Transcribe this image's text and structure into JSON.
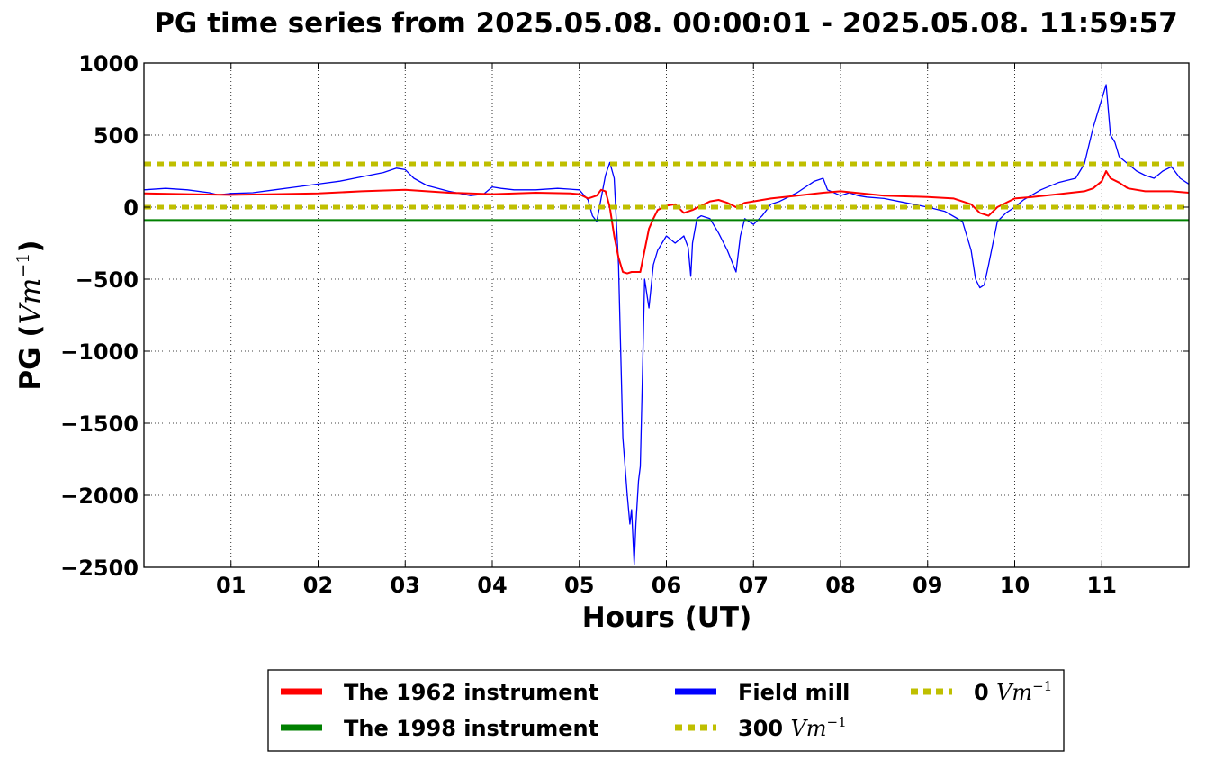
{
  "chart_data": {
    "type": "line",
    "title": "PG time series from 2025.05.08. 00:00:01 - 2025.05.08. 11:59:57",
    "xlabel": "Hours (UT)",
    "ylabel_prefix": "PG (",
    "ylabel_unit": "Vm",
    "ylabel_exp": "−1",
    "ylabel_suffix": ")",
    "xlim": [
      0,
      12
    ],
    "ylim": [
      -2500,
      1000
    ],
    "x_tick_values": [
      1,
      2,
      3,
      4,
      5,
      6,
      7,
      8,
      9,
      10,
      11
    ],
    "x_tick_labels": [
      "01",
      "02",
      "03",
      "04",
      "05",
      "06",
      "07",
      "08",
      "09",
      "10",
      "11"
    ],
    "y_tick_values": [
      1000,
      500,
      0,
      -500,
      -1000,
      -1500,
      -2000,
      -2500
    ],
    "y_tick_labels": [
      "1000",
      "500",
      "0",
      "−500",
      "−1000",
      "−1500",
      "−2000",
      "−2500"
    ],
    "grid": true,
    "legend_position": "below plot",
    "series": [
      {
        "name": "Field mill",
        "color": "#0000ff",
        "x": [
          0,
          0.25,
          0.5,
          0.75,
          0.85,
          1,
          1.25,
          1.5,
          1.75,
          2,
          2.25,
          2.5,
          2.75,
          2.9,
          3,
          3.1,
          3.25,
          3.5,
          3.75,
          3.9,
          4,
          4.1,
          4.25,
          4.5,
          4.75,
          5,
          5.1,
          5.15,
          5.2,
          5.3,
          5.35,
          5.4,
          5.45,
          5.5,
          5.55,
          5.58,
          5.6,
          5.63,
          5.65,
          5.68,
          5.7,
          5.72,
          5.75,
          5.8,
          5.85,
          5.9,
          6,
          6.1,
          6.2,
          6.25,
          6.28,
          6.3,
          6.35,
          6.4,
          6.5,
          6.6,
          6.7,
          6.8,
          6.85,
          6.9,
          7,
          7.1,
          7.2,
          7.3,
          7.5,
          7.7,
          7.8,
          7.85,
          8,
          8.1,
          8.2,
          8.3,
          8.5,
          8.75,
          9,
          9.2,
          9.4,
          9.5,
          9.55,
          9.6,
          9.65,
          9.7,
          9.8,
          9.9,
          10,
          10.1,
          10.3,
          10.5,
          10.7,
          10.8,
          10.9,
          10.95,
          11,
          11.05,
          11.1,
          11.15,
          11.2,
          11.3,
          11.4,
          11.5,
          11.6,
          11.7,
          11.8,
          11.9,
          12
        ],
        "y": [
          120,
          130,
          120,
          100,
          85,
          95,
          100,
          120,
          140,
          160,
          180,
          210,
          240,
          270,
          260,
          200,
          150,
          110,
          80,
          90,
          140,
          130,
          120,
          120,
          130,
          120,
          50,
          -60,
          -100,
          220,
          310,
          200,
          -400,
          -1600,
          -2000,
          -2200,
          -2100,
          -2480,
          -2200,
          -1900,
          -1800,
          -1300,
          -500,
          -700,
          -400,
          -300,
          -200,
          -250,
          -200,
          -280,
          -480,
          -250,
          -80,
          -60,
          -80,
          -180,
          -300,
          -450,
          -200,
          -80,
          -120,
          -60,
          20,
          40,
          100,
          180,
          200,
          120,
          80,
          100,
          80,
          70,
          60,
          30,
          0,
          -30,
          -100,
          -300,
          -500,
          -560,
          -540,
          -400,
          -100,
          -40,
          0,
          50,
          120,
          170,
          200,
          300,
          550,
          650,
          750,
          850,
          500,
          450,
          350,
          300,
          250,
          220,
          200,
          250,
          280,
          200,
          160
        ]
      },
      {
        "name": "The 1962 instrument",
        "color": "#ff0000",
        "x": [
          0,
          0.5,
          1,
          1.5,
          2,
          2.5,
          3,
          3.25,
          3.5,
          4,
          4.5,
          4.9,
          5,
          5.1,
          5.2,
          5.25,
          5.3,
          5.35,
          5.4,
          5.45,
          5.5,
          5.55,
          5.6,
          5.7,
          5.75,
          5.8,
          5.85,
          5.9,
          6,
          6.1,
          6.2,
          6.3,
          6.4,
          6.5,
          6.6,
          6.7,
          6.8,
          6.9,
          7,
          7.2,
          7.5,
          7.8,
          8,
          8.5,
          9,
          9.3,
          9.5,
          9.6,
          9.7,
          9.8,
          10,
          10.2,
          10.5,
          10.8,
          10.9,
          11,
          11.05,
          11.1,
          11.2,
          11.3,
          11.5,
          11.8,
          12
        ],
        "y": [
          95,
          90,
          85,
          90,
          95,
          110,
          120,
          110,
          100,
          90,
          100,
          95,
          90,
          60,
          80,
          120,
          110,
          0,
          -200,
          -350,
          -450,
          -460,
          -450,
          -450,
          -300,
          -150,
          -80,
          -20,
          10,
          20,
          -40,
          -20,
          10,
          40,
          50,
          30,
          0,
          30,
          40,
          60,
          80,
          100,
          110,
          80,
          70,
          60,
          20,
          -40,
          -60,
          0,
          60,
          70,
          90,
          110,
          130,
          180,
          250,
          200,
          170,
          130,
          110,
          110,
          100
        ]
      },
      {
        "name": "The 1998 instrument",
        "color": "#008000",
        "x": [
          0,
          12
        ],
        "y": [
          -90,
          -90
        ]
      },
      {
        "name": "300 Vm−1",
        "color": "#bfbf00",
        "dashed": true,
        "x": [
          0,
          12
        ],
        "y": [
          300,
          300
        ]
      },
      {
        "name": "0 Vm−1",
        "color": "#bfbf00",
        "dashed": true,
        "x": [
          0,
          12
        ],
        "y": [
          0,
          0
        ]
      }
    ],
    "legend": [
      {
        "number": "",
        "text": "The 1962 instrument",
        "unit": "",
        "exp": "",
        "color": "#ff0000",
        "dashed": false
      },
      {
        "number": "",
        "text": "The 1998 instrument",
        "unit": "",
        "exp": "",
        "color": "#008000",
        "dashed": false
      },
      {
        "number": "",
        "text": "Field mill",
        "unit": "",
        "exp": "",
        "color": "#0000ff",
        "dashed": false
      },
      {
        "number": "300",
        "text": "",
        "unit": "Vm",
        "exp": "−1",
        "color": "#bfbf00",
        "dashed": true
      },
      {
        "number": "0",
        "text": "",
        "unit": "Vm",
        "exp": "−1",
        "color": "#bfbf00",
        "dashed": true
      }
    ]
  }
}
